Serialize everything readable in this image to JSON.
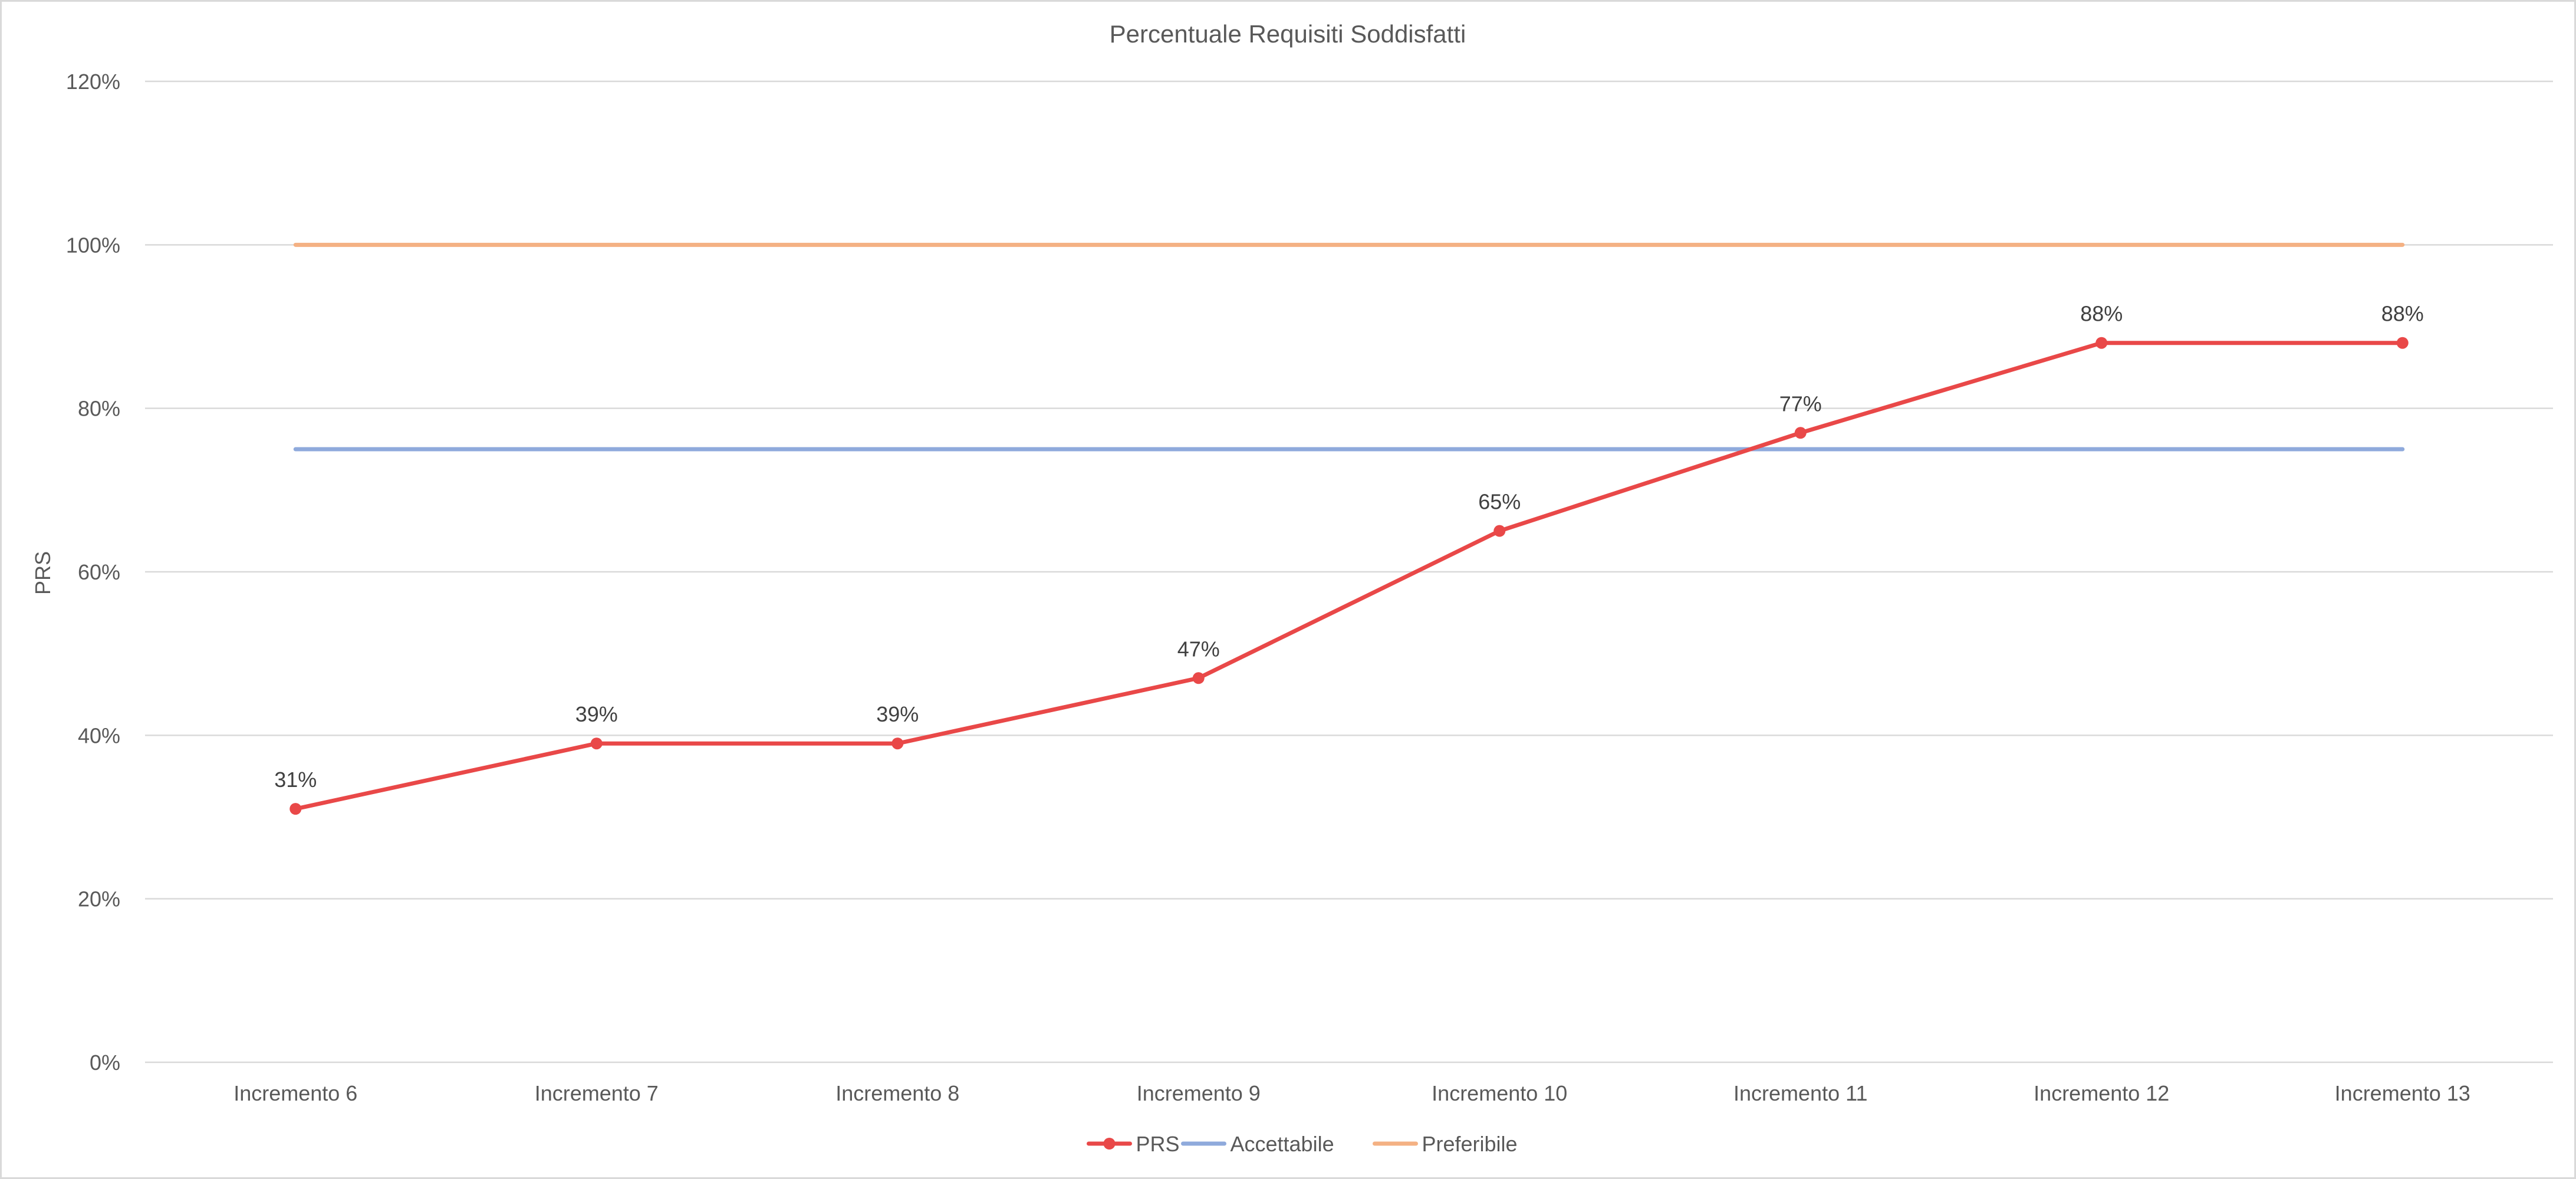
{
  "chart_data": {
    "type": "line",
    "title": "Percentuale Requisiti Soddisfatti",
    "xlabel": "",
    "ylabel": "PRS",
    "categories": [
      "Incremento 6",
      "Incremento 7",
      "Incremento 8",
      "Incremento 9",
      "Incremento 10",
      "Incremento 11",
      "Incremento 12",
      "Incremento 13"
    ],
    "ylim": [
      0,
      120
    ],
    "yticks": [
      0,
      20,
      40,
      60,
      80,
      100,
      120
    ],
    "ytick_labels": [
      "0%",
      "20%",
      "40%",
      "60%",
      "80%",
      "100%",
      "120%"
    ],
    "grid": true,
    "legend_position": "bottom",
    "series": [
      {
        "name": "PRS",
        "values": [
          31,
          39,
          39,
          47,
          65,
          77,
          88,
          88
        ],
        "data_labels": [
          "31%",
          "39%",
          "39%",
          "47%",
          "65%",
          "77%",
          "88%",
          "88%"
        ],
        "color": "#e94848",
        "markers": true
      },
      {
        "name": "Accettabile",
        "values": [
          75,
          75,
          75,
          75,
          75,
          75,
          75,
          75
        ],
        "color": "#8faadc",
        "markers": false
      },
      {
        "name": "Preferibile",
        "values": [
          100,
          100,
          100,
          100,
          100,
          100,
          100,
          100
        ],
        "color": "#f4b183",
        "markers": false
      }
    ]
  }
}
